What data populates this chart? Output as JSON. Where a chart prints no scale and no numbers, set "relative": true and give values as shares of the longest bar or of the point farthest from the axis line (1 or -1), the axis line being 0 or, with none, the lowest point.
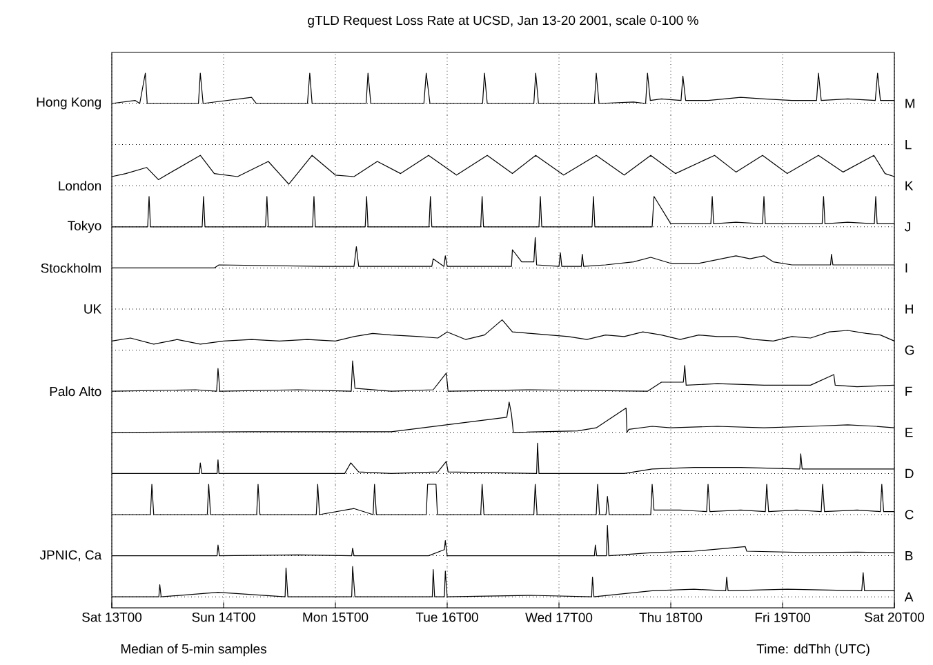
{
  "chart_data": [
    {
      "type": "line",
      "relative": true,
      "title": "gTLD Request Loss Rate at UCSD, Jan 13-20 2001, scale 0-100 %",
      "ylabel": "Hong Kong",
      "y2label": "M",
      "grid": "x",
      "tick_labels": false,
      "xlim": [
        "2001-01-13T00:00",
        "2001-01-20T00:00"
      ],
      "xticks": [
        {
          "value": "2001-01-13T00:00",
          "label": null
        },
        {
          "value": "2001-01-14T00:00",
          "label": null
        },
        {
          "value": "2001-01-15T00:00",
          "label": null
        },
        {
          "value": "2001-01-16T00:00",
          "label": null
        },
        {
          "value": "2001-01-17T00:00",
          "label": null
        },
        {
          "value": "2001-01-18T00:00",
          "label": null
        },
        {
          "value": "2001-01-19T00:00",
          "label": null
        },
        {
          "value": "2001-01-20T00:00",
          "label": null
        }
      ],
      "x": [
        "2001-01-13T00:00",
        "2001-01-13T05:00",
        "2001-01-13T06:00",
        "2001-01-13T07:12",
        "2001-01-13T07:36",
        "2001-01-13T18:36",
        "2001-01-13T19:00",
        "2001-01-13T19:36",
        "2001-01-14T06:00",
        "2001-01-14T07:00",
        "2001-01-14T08:00",
        "2001-01-14T18:00",
        "2001-01-14T18:30",
        "2001-01-14T19:00",
        "2001-01-15T06:36",
        "2001-01-15T07:00",
        "2001-01-15T07:36",
        "2001-01-15T19:00",
        "2001-01-15T19:30",
        "2001-01-15T20:18",
        "2001-01-16T07:36",
        "2001-01-16T08:00",
        "2001-01-16T08:36",
        "2001-01-16T18:36",
        "2001-01-16T19:00",
        "2001-01-16T19:36",
        "2001-01-17T07:36",
        "2001-01-17T08:00",
        "2001-01-17T08:36",
        "2001-01-17T16:00",
        "2001-01-17T18:36",
        "2001-01-17T19:00",
        "2001-01-17T19:36",
        "2001-01-17T22:00",
        "2001-01-18T02:12",
        "2001-01-18T02:36",
        "2001-01-18T03:12",
        "2001-01-18T08:00",
        "2001-01-18T15:00",
        "2001-01-18T20:00",
        "2001-01-19T02:00",
        "2001-01-19T07:18",
        "2001-01-19T07:42",
        "2001-01-19T08:18",
        "2001-01-19T14:00",
        "2001-01-19T19:54",
        "2001-01-19T20:24",
        "2001-01-19T21:00",
        "2001-01-20T00:00"
      ],
      "series": [
        {
          "color": "#000000",
          "values": [
            0,
            0.1,
            0,
            1,
            0,
            0,
            1,
            0,
            0.2,
            0,
            0,
            0,
            1,
            0,
            0,
            1,
            0,
            0,
            1,
            0,
            0,
            1,
            0,
            0,
            1,
            0,
            0,
            1,
            0,
            0.05,
            0,
            1,
            0.1,
            0.15,
            0.1,
            0.9,
            0.1,
            0.1,
            0.2,
            0.15,
            0.1,
            0.1,
            1,
            0.1,
            0.15,
            0.1,
            1,
            0.1,
            0.1
          ]
        }
      ]
    },
    {
      "type": "other",
      "y2label": "L"
    },
    {
      "type": "line",
      "relative": true,
      "ylabel": "London",
      "y2label": "K",
      "grid": "x",
      "tick_labels": false,
      "xlim": [
        "2001-01-13T00:00",
        "2001-01-20T00:00"
      ],
      "xticks": [
        {
          "value": "2001-01-13T00:00",
          "label": null
        },
        {
          "value": "2001-01-14T00:00",
          "label": null
        },
        {
          "value": "2001-01-15T00:00",
          "label": null
        },
        {
          "value": "2001-01-16T00:00",
          "label": null
        },
        {
          "value": "2001-01-17T00:00",
          "label": null
        },
        {
          "value": "2001-01-18T00:00",
          "label": null
        },
        {
          "value": "2001-01-19T00:00",
          "label": null
        },
        {
          "value": "2001-01-20T00:00",
          "label": null
        }
      ],
      "x": [
        "2001-01-13T00:00",
        "2001-01-13T03:00",
        "2001-01-13T07:30",
        "2001-01-13T10:00",
        "2001-01-13T19:00",
        "2001-01-13T22:00",
        "2001-01-14T03:00",
        "2001-01-14T09:36",
        "2001-01-14T14:00",
        "2001-01-14T19:00",
        "2001-01-15T00:00",
        "2001-01-15T04:00",
        "2001-01-15T09:00",
        "2001-01-15T14:00",
        "2001-01-15T20:00",
        "2001-01-16T02:00",
        "2001-01-16T08:36",
        "2001-01-16T14:00",
        "2001-01-16T19:00",
        "2001-01-17T01:00",
        "2001-01-17T08:00",
        "2001-01-17T14:00",
        "2001-01-17T19:42",
        "2001-01-18T01:00",
        "2001-01-18T09:24",
        "2001-01-18T14:00",
        "2001-01-18T19:42",
        "2001-01-19T01:00",
        "2001-01-19T07:42",
        "2001-01-19T13:00",
        "2001-01-19T19:36",
        "2001-01-19T22:00",
        "2001-01-20T00:00"
      ],
      "series": [
        {
          "color": "#000000",
          "values": [
            0.3,
            0.4,
            0.6,
            0.2,
            1,
            0.4,
            0.3,
            0.8,
            0.05,
            1,
            0.35,
            0.3,
            0.8,
            0.4,
            1,
            0.35,
            1,
            0.4,
            1,
            0.35,
            1,
            0.35,
            1,
            0.4,
            1,
            0.45,
            1,
            0.4,
            1,
            0.45,
            1,
            0.4,
            0.3
          ]
        }
      ]
    },
    {
      "type": "line",
      "relative": true,
      "ylabel": "Tokyo",
      "y2label": "J",
      "grid": "x",
      "tick_labels": false,
      "xlim": [
        "2001-01-13T00:00",
        "2001-01-20T00:00"
      ],
      "xticks": [
        {
          "value": "2001-01-13T00:00",
          "label": null
        },
        {
          "value": "2001-01-14T00:00",
          "label": null
        },
        {
          "value": "2001-01-15T00:00",
          "label": null
        },
        {
          "value": "2001-01-16T00:00",
          "label": null
        },
        {
          "value": "2001-01-17T00:00",
          "label": null
        },
        {
          "value": "2001-01-18T00:00",
          "label": null
        },
        {
          "value": "2001-01-19T00:00",
          "label": null
        },
        {
          "value": "2001-01-20T00:00",
          "label": null
        }
      ],
      "x": [
        "2001-01-13T00:00",
        "2001-01-13T07:42",
        "2001-01-13T08:00",
        "2001-01-13T08:18",
        "2001-01-13T19:24",
        "2001-01-13T19:42",
        "2001-01-13T20:00",
        "2001-01-14T09:00",
        "2001-01-14T09:18",
        "2001-01-14T09:36",
        "2001-01-14T19:06",
        "2001-01-14T19:24",
        "2001-01-14T19:42",
        "2001-01-15T06:24",
        "2001-01-15T06:42",
        "2001-01-15T07:00",
        "2001-01-15T20:06",
        "2001-01-15T20:24",
        "2001-01-15T20:42",
        "2001-01-16T07:12",
        "2001-01-16T07:30",
        "2001-01-16T07:48",
        "2001-01-16T19:42",
        "2001-01-16T20:00",
        "2001-01-16T20:18",
        "2001-01-17T07:06",
        "2001-01-17T07:24",
        "2001-01-17T07:42",
        "2001-01-17T20:00",
        "2001-01-17T20:24",
        "2001-01-18T00:00",
        "2001-01-18T08:36",
        "2001-01-18T08:54",
        "2001-01-18T09:12",
        "2001-01-18T14:00",
        "2001-01-18T19:42",
        "2001-01-18T20:00",
        "2001-01-18T20:18",
        "2001-01-19T02:00",
        "2001-01-19T08:30",
        "2001-01-19T08:48",
        "2001-01-19T09:06",
        "2001-01-19T14:00",
        "2001-01-19T19:42",
        "2001-01-19T20:00",
        "2001-01-19T20:18",
        "2001-01-20T00:00"
      ],
      "series": [
        {
          "color": "#000000",
          "values": [
            0,
            0,
            1,
            0,
            0,
            1,
            0,
            0,
            1,
            0,
            0,
            1,
            0,
            0,
            1,
            0,
            0,
            1,
            0,
            0,
            1,
            0,
            0,
            1,
            0,
            0,
            1,
            0,
            0,
            1,
            0.1,
            0.1,
            1,
            0.1,
            0.15,
            0.1,
            1,
            0.1,
            0.1,
            0.1,
            1,
            0.1,
            0.15,
            0.1,
            1,
            0.1,
            0.1
          ]
        }
      ]
    },
    {
      "type": "line",
      "relative": true,
      "ylabel": "Stockholm",
      "y2label": "I",
      "grid": "x",
      "tick_labels": false,
      "xlim": [
        "2001-01-13T00:00",
        "2001-01-20T00:00"
      ],
      "xticks": [
        {
          "value": "2001-01-13T00:00",
          "label": null
        },
        {
          "value": "2001-01-14T00:00",
          "label": null
        },
        {
          "value": "2001-01-15T00:00",
          "label": null
        },
        {
          "value": "2001-01-16T00:00",
          "label": null
        },
        {
          "value": "2001-01-17T00:00",
          "label": null
        },
        {
          "value": "2001-01-18T00:00",
          "label": null
        },
        {
          "value": "2001-01-19T00:00",
          "label": null
        },
        {
          "value": "2001-01-20T00:00",
          "label": null
        }
      ],
      "x": [
        "2001-01-13T00:00",
        "2001-01-13T22:00",
        "2001-01-13T23:00",
        "2001-01-14T21:00",
        "2001-01-15T04:00",
        "2001-01-15T04:30",
        "2001-01-15T05:00",
        "2001-01-15T12:00",
        "2001-01-15T20:42",
        "2001-01-15T21:00",
        "2001-01-15T23:18",
        "2001-01-15T23:36",
        "2001-01-16T00:00",
        "2001-01-16T08:00",
        "2001-01-16T13:48",
        "2001-01-16T14:00",
        "2001-01-16T16:00",
        "2001-01-16T18:36",
        "2001-01-16T18:54",
        "2001-01-16T19:12",
        "2001-01-17T00:00",
        "2001-01-17T00:18",
        "2001-01-17T00:36",
        "2001-01-17T04:48",
        "2001-01-17T05:00",
        "2001-01-17T05:18",
        "2001-01-17T10:00",
        "2001-01-17T16:00",
        "2001-01-17T19:42",
        "2001-01-18T00:00",
        "2001-01-18T06:00",
        "2001-01-18T14:00",
        "2001-01-18T17:00",
        "2001-01-18T20:00",
        "2001-01-18T22:00",
        "2001-01-19T02:00",
        "2001-01-19T10:18",
        "2001-01-19T10:30",
        "2001-01-19T10:48",
        "2001-01-19T16:00",
        "2001-01-20T00:00"
      ],
      "series": [
        {
          "color": "#000000",
          "values": [
            0,
            0,
            0.1,
            0.05,
            0.05,
            0.7,
            0.05,
            0.05,
            0.05,
            0.3,
            0.05,
            0.4,
            0.05,
            0.05,
            0.05,
            0.6,
            0.2,
            0.2,
            1,
            0.1,
            0.05,
            0.5,
            0.05,
            0.05,
            0.45,
            0.05,
            0.1,
            0.2,
            0.35,
            0.15,
            0.15,
            0.4,
            0.3,
            0.4,
            0.2,
            0.1,
            0.1,
            0.45,
            0.1,
            0.1,
            0.1
          ]
        }
      ]
    },
    {
      "type": "other",
      "ylabel": "UK",
      "y2label": "H"
    },
    {
      "type": "line",
      "relative": true,
      "y2label": "G",
      "grid": "x",
      "tick_labels": false,
      "xlim": [
        "2001-01-13T00:00",
        "2001-01-20T00:00"
      ],
      "xticks": [
        {
          "value": "2001-01-13T00:00",
          "label": null
        },
        {
          "value": "2001-01-14T00:00",
          "label": null
        },
        {
          "value": "2001-01-15T00:00",
          "label": null
        },
        {
          "value": "2001-01-16T00:00",
          "label": null
        },
        {
          "value": "2001-01-17T00:00",
          "label": null
        },
        {
          "value": "2001-01-18T00:00",
          "label": null
        },
        {
          "value": "2001-01-19T00:00",
          "label": null
        },
        {
          "value": "2001-01-20T00:00",
          "label": null
        }
      ],
      "x": [
        "2001-01-13T00:00",
        "2001-01-13T04:00",
        "2001-01-13T09:00",
        "2001-01-13T14:00",
        "2001-01-13T19:00",
        "2001-01-14T00:00",
        "2001-01-14T06:00",
        "2001-01-14T12:00",
        "2001-01-14T18:00",
        "2001-01-15T00:00",
        "2001-01-15T04:00",
        "2001-01-15T08:00",
        "2001-01-15T12:00",
        "2001-01-15T18:00",
        "2001-01-15T22:00",
        "2001-01-16T00:00",
        "2001-01-16T04:00",
        "2001-01-16T08:00",
        "2001-01-16T11:48",
        "2001-01-16T14:00",
        "2001-01-16T18:00",
        "2001-01-16T22:00",
        "2001-01-17T02:00",
        "2001-01-17T06:00",
        "2001-01-17T10:00",
        "2001-01-17T14:00",
        "2001-01-17T18:00",
        "2001-01-17T22:00",
        "2001-01-18T02:00",
        "2001-01-18T06:00",
        "2001-01-18T10:00",
        "2001-01-18T14:00",
        "2001-01-18T18:00",
        "2001-01-18T22:00",
        "2001-01-19T02:00",
        "2001-01-19T06:00",
        "2001-01-19T10:00",
        "2001-01-19T14:00",
        "2001-01-19T18:00",
        "2001-01-19T21:00",
        "2001-01-20T00:00"
      ],
      "series": [
        {
          "color": "#000000",
          "values": [
            0.3,
            0.4,
            0.2,
            0.35,
            0.2,
            0.3,
            0.35,
            0.3,
            0.35,
            0.3,
            0.45,
            0.55,
            0.5,
            0.45,
            0.4,
            0.6,
            0.35,
            0.5,
            1,
            0.6,
            0.55,
            0.5,
            0.45,
            0.35,
            0.5,
            0.45,
            0.6,
            0.5,
            0.35,
            0.5,
            0.45,
            0.45,
            0.35,
            0.3,
            0.45,
            0.4,
            0.6,
            0.65,
            0.55,
            0.5,
            0.3
          ]
        }
      ]
    },
    {
      "type": "line",
      "relative": true,
      "ylabel": "Palo Alto",
      "y2label": "F",
      "grid": "x",
      "tick_labels": false,
      "xlim": [
        "2001-01-13T00:00",
        "2001-01-20T00:00"
      ],
      "xticks": [
        {
          "value": "2001-01-13T00:00",
          "label": null
        },
        {
          "value": "2001-01-14T00:00",
          "label": null
        },
        {
          "value": "2001-01-15T00:00",
          "label": null
        },
        {
          "value": "2001-01-16T00:00",
          "label": null
        },
        {
          "value": "2001-01-17T00:00",
          "label": null
        },
        {
          "value": "2001-01-18T00:00",
          "label": null
        },
        {
          "value": "2001-01-19T00:00",
          "label": null
        },
        {
          "value": "2001-01-20T00:00",
          "label": null
        }
      ],
      "x": [
        "2001-01-13T00:00",
        "2001-01-13T18:00",
        "2001-01-13T22:30",
        "2001-01-13T22:48",
        "2001-01-13T23:12",
        "2001-01-14T16:00",
        "2001-01-15T03:24",
        "2001-01-15T03:42",
        "2001-01-15T04:12",
        "2001-01-15T12:00",
        "2001-01-15T21:00",
        "2001-01-15T23:48",
        "2001-01-16T00:12",
        "2001-01-16T18:00",
        "2001-01-17T19:00",
        "2001-01-17T22:00",
        "2001-01-18T02:42",
        "2001-01-18T03:00",
        "2001-01-18T03:18",
        "2001-01-18T10:00",
        "2001-01-18T20:00",
        "2001-01-19T06:00",
        "2001-01-19T11:00",
        "2001-01-19T11:18",
        "2001-01-19T16:00",
        "2001-01-20T00:00"
      ],
      "series": [
        {
          "color": "#000000",
          "values": [
            0,
            0.05,
            0,
            0.75,
            0,
            0.05,
            0,
            1,
            0.1,
            0,
            0.05,
            0.6,
            0,
            0.05,
            0,
            0.3,
            0.3,
            0.85,
            0.2,
            0.25,
            0.2,
            0.2,
            0.55,
            0.2,
            0.15,
            0.2
          ]
        }
      ]
    },
    {
      "type": "line",
      "relative": true,
      "y2label": "E",
      "grid": "x",
      "tick_labels": false,
      "xlim": [
        "2001-01-13T00:00",
        "2001-01-20T00:00"
      ],
      "xticks": [
        {
          "value": "2001-01-13T00:00",
          "label": null
        },
        {
          "value": "2001-01-14T00:00",
          "label": null
        },
        {
          "value": "2001-01-15T00:00",
          "label": null
        },
        {
          "value": "2001-01-16T00:00",
          "label": null
        },
        {
          "value": "2001-01-17T00:00",
          "label": null
        },
        {
          "value": "2001-01-18T00:00",
          "label": null
        },
        {
          "value": "2001-01-19T00:00",
          "label": null
        },
        {
          "value": "2001-01-20T00:00",
          "label": null
        }
      ],
      "x": [
        "2001-01-13T00:00",
        "2001-01-14T06:00",
        "2001-01-15T12:00",
        "2001-01-16T12:48",
        "2001-01-16T13:18",
        "2001-01-16T13:48",
        "2001-01-16T14:12",
        "2001-01-17T04:00",
        "2001-01-17T08:00",
        "2001-01-17T14:24",
        "2001-01-17T14:36",
        "2001-01-17T15:00",
        "2001-01-17T20:00",
        "2001-01-18T00:00",
        "2001-01-18T10:00",
        "2001-01-18T20:00",
        "2001-01-19T06:00",
        "2001-01-19T14:00",
        "2001-01-19T20:00",
        "2001-01-20T00:00"
      ],
      "series": [
        {
          "color": "#000000",
          "values": [
            0,
            0.02,
            0.02,
            0.5,
            1,
            0.6,
            0,
            0.05,
            0.15,
            0.8,
            0,
            0.1,
            0.2,
            0.15,
            0.2,
            0.15,
            0.2,
            0.25,
            0.2,
            0.15
          ]
        }
      ]
    },
    {
      "type": "line",
      "relative": true,
      "y2label": "D",
      "grid": "x",
      "tick_labels": false,
      "xlim": [
        "2001-01-13T00:00",
        "2001-01-20T00:00"
      ],
      "xticks": [
        {
          "value": "2001-01-13T00:00",
          "label": null
        },
        {
          "value": "2001-01-14T00:00",
          "label": null
        },
        {
          "value": "2001-01-15T00:00",
          "label": null
        },
        {
          "value": "2001-01-16T00:00",
          "label": null
        },
        {
          "value": "2001-01-17T00:00",
          "label": null
        },
        {
          "value": "2001-01-18T00:00",
          "label": null
        },
        {
          "value": "2001-01-19T00:00",
          "label": null
        },
        {
          "value": "2001-01-20T00:00",
          "label": null
        }
      ],
      "x": [
        "2001-01-13T00:00",
        "2001-01-13T18:48",
        "2001-01-13T19:00",
        "2001-01-13T19:18",
        "2001-01-13T22:36",
        "2001-01-13T22:48",
        "2001-01-13T23:00",
        "2001-01-15T02:00",
        "2001-01-15T03:18",
        "2001-01-15T05:00",
        "2001-01-15T12:00",
        "2001-01-15T22:00",
        "2001-01-15T23:48",
        "2001-01-16T00:12",
        "2001-01-16T19:12",
        "2001-01-16T19:24",
        "2001-01-16T19:42",
        "2001-01-17T14:00",
        "2001-01-17T20:00",
        "2001-01-18T05:00",
        "2001-01-18T15:00",
        "2001-01-19T03:42",
        "2001-01-19T03:54",
        "2001-01-19T04:12",
        "2001-01-19T16:00",
        "2001-01-20T00:00"
      ],
      "series": [
        {
          "color": "#000000",
          "values": [
            0,
            0,
            0.35,
            0,
            0,
            0.45,
            0,
            0,
            0.35,
            0.05,
            0,
            0.05,
            0.4,
            0.05,
            0,
            1,
            0,
            0,
            0.15,
            0.2,
            0.2,
            0.15,
            0.65,
            0.15,
            0.15,
            0.15
          ]
        }
      ]
    },
    {
      "type": "line",
      "relative": true,
      "y2label": "C",
      "grid": "x",
      "tick_labels": false,
      "xlim": [
        "2001-01-13T00:00",
        "2001-01-20T00:00"
      ],
      "xticks": [
        {
          "value": "2001-01-13T00:00",
          "label": null
        },
        {
          "value": "2001-01-14T00:00",
          "label": null
        },
        {
          "value": "2001-01-15T00:00",
          "label": null
        },
        {
          "value": "2001-01-16T00:00",
          "label": null
        },
        {
          "value": "2001-01-17T00:00",
          "label": null
        },
        {
          "value": "2001-01-18T00:00",
          "label": null
        },
        {
          "value": "2001-01-19T00:00",
          "label": null
        },
        {
          "value": "2001-01-20T00:00",
          "label": null
        }
      ],
      "x": [
        "2001-01-13T00:00",
        "2001-01-13T08:18",
        "2001-01-13T08:36",
        "2001-01-13T09:00",
        "2001-01-13T20:30",
        "2001-01-13T20:48",
        "2001-01-13T21:12",
        "2001-01-14T07:06",
        "2001-01-14T07:24",
        "2001-01-14T07:48",
        "2001-01-14T19:54",
        "2001-01-14T20:12",
        "2001-01-14T20:36",
        "2001-01-15T04:00",
        "2001-01-15T08:06",
        "2001-01-15T08:24",
        "2001-01-15T08:48",
        "2001-01-15T19:30",
        "2001-01-15T19:48",
        "2001-01-15T21:36",
        "2001-01-15T21:54",
        "2001-01-16T07:12",
        "2001-01-16T07:30",
        "2001-01-16T07:54",
        "2001-01-16T18:36",
        "2001-01-16T18:54",
        "2001-01-16T19:18",
        "2001-01-17T08:00",
        "2001-01-17T08:18",
        "2001-01-17T08:42",
        "2001-01-17T10:06",
        "2001-01-17T10:24",
        "2001-01-17T10:48",
        "2001-01-17T19:42",
        "2001-01-17T20:00",
        "2001-01-17T20:24",
        "2001-01-18T02:00",
        "2001-01-18T07:42",
        "2001-01-18T08:00",
        "2001-01-18T08:24",
        "2001-01-18T15:00",
        "2001-01-18T20:18",
        "2001-01-18T20:36",
        "2001-01-18T21:00",
        "2001-01-19T03:00",
        "2001-01-19T08:18",
        "2001-01-19T08:36",
        "2001-01-19T09:00",
        "2001-01-19T16:00",
        "2001-01-19T21:00",
        "2001-01-19T21:18",
        "2001-01-19T21:42",
        "2001-01-20T00:00"
      ],
      "series": [
        {
          "color": "#000000",
          "values": [
            0,
            0,
            1,
            0,
            0,
            1,
            0,
            0,
            1,
            0,
            0,
            1,
            0,
            0.2,
            0,
            1,
            0,
            0,
            1,
            1,
            0,
            0,
            1,
            0,
            0,
            1,
            0,
            0,
            1,
            0,
            0,
            0.6,
            0,
            0,
            1,
            0.15,
            0.15,
            0.1,
            1,
            0.1,
            0.15,
            0.1,
            1,
            0.1,
            0.15,
            0.1,
            1,
            0.1,
            0.15,
            0.1,
            1,
            0.1,
            0.1
          ]
        }
      ]
    },
    {
      "type": "line",
      "relative": true,
      "ylabel": "JPNIC, Ca",
      "y2label": "B",
      "grid": "x",
      "tick_labels": false,
      "xlim": [
        "2001-01-13T00:00",
        "2001-01-20T00:00"
      ],
      "xticks": [
        {
          "value": "2001-01-13T00:00",
          "label": null
        },
        {
          "value": "2001-01-14T00:00",
          "label": null
        },
        {
          "value": "2001-01-15T00:00",
          "label": null
        },
        {
          "value": "2001-01-16T00:00",
          "label": null
        },
        {
          "value": "2001-01-17T00:00",
          "label": null
        },
        {
          "value": "2001-01-18T00:00",
          "label": null
        },
        {
          "value": "2001-01-19T00:00",
          "label": null
        },
        {
          "value": "2001-01-20T00:00",
          "label": null
        }
      ],
      "x": [
        "2001-01-13T00:00",
        "2001-01-13T22:36",
        "2001-01-13T22:48",
        "2001-01-13T23:06",
        "2001-01-14T16:00",
        "2001-01-15T03:30",
        "2001-01-15T03:42",
        "2001-01-15T04:00",
        "2001-01-15T20:00",
        "2001-01-15T23:24",
        "2001-01-15T23:36",
        "2001-01-16T00:00",
        "2001-01-16T18:00",
        "2001-01-17T07:36",
        "2001-01-17T07:48",
        "2001-01-17T08:06",
        "2001-01-17T10:12",
        "2001-01-17T10:24",
        "2001-01-17T10:42",
        "2001-01-17T20:00",
        "2001-01-18T05:00",
        "2001-01-18T16:00",
        "2001-01-18T16:18",
        "2001-01-19T06:00",
        "2001-01-19T16:00",
        "2001-01-20T00:00"
      ],
      "series": [
        {
          "color": "#000000",
          "values": [
            0,
            0,
            0.35,
            0,
            0.03,
            0,
            0.25,
            0,
            0,
            0.2,
            0.5,
            0,
            0,
            0,
            0.35,
            0,
            0,
            1,
            0,
            0.1,
            0.15,
            0.3,
            0.15,
            0.1,
            0.12,
            0.1
          ]
        }
      ]
    },
    {
      "type": "line",
      "relative": true,
      "y2label": "A",
      "grid": "x",
      "tick_labels": "x",
      "xlim": [
        "2001-01-13T00:00",
        "2001-01-20T00:00"
      ],
      "xticks": [
        {
          "value": "2001-01-13T00:00",
          "label": "Sat 13T00"
        },
        {
          "value": "2001-01-14T00:00",
          "label": "Sun 14T00"
        },
        {
          "value": "2001-01-15T00:00",
          "label": "Mon 15T00"
        },
        {
          "value": "2001-01-16T00:00",
          "label": "Tue 16T00"
        },
        {
          "value": "2001-01-17T00:00",
          "label": "Wed 17T00"
        },
        {
          "value": "2001-01-18T00:00",
          "label": "Thu 18T00"
        },
        {
          "value": "2001-01-19T00:00",
          "label": "Fri 19T00"
        },
        {
          "value": "2001-01-20T00:00",
          "label": "Sat 20T00"
        }
      ],
      "annotations": [
        "Median of 5-min samples",
        "Time: ddThh (UTC)"
      ],
      "x": [
        "2001-01-13T00:00",
        "2001-01-13T10:06",
        "2001-01-13T10:18",
        "2001-01-13T10:36",
        "2001-01-13T22:48",
        "2001-01-14T13:12",
        "2001-01-14T13:24",
        "2001-01-14T13:48",
        "2001-01-15T03:30",
        "2001-01-15T03:42",
        "2001-01-15T04:12",
        "2001-01-15T20:48",
        "2001-01-15T21:00",
        "2001-01-15T21:18",
        "2001-01-15T23:24",
        "2001-01-15T23:36",
        "2001-01-16T00:00",
        "2001-01-16T18:00",
        "2001-01-17T07:00",
        "2001-01-17T07:12",
        "2001-01-17T07:30",
        "2001-01-17T20:00",
        "2001-01-18T05:00",
        "2001-01-18T11:48",
        "2001-01-18T12:00",
        "2001-01-18T12:18",
        "2001-01-19T01:00",
        "2001-01-19T17:00",
        "2001-01-19T17:18",
        "2001-01-19T17:36",
        "2001-01-20T00:00"
      ],
      "series": [
        {
          "color": "#000000",
          "values": [
            0,
            0,
            0.4,
            0,
            0.15,
            0,
            0.95,
            0,
            0,
            1,
            0,
            0,
            0.9,
            0,
            0,
            0.85,
            0,
            0.05,
            0,
            0.65,
            0,
            0.2,
            0.25,
            0.2,
            0.65,
            0.2,
            0.25,
            0.2,
            0.8,
            0.2,
            0.2
          ]
        }
      ]
    }
  ]
}
